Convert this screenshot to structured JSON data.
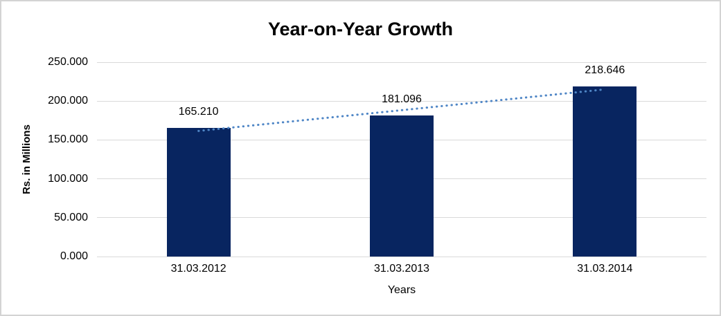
{
  "chart_data": {
    "type": "bar",
    "title": "Year-on-Year Growth",
    "xlabel": "Years",
    "ylabel": "Rs. in Millions",
    "categories": [
      "31.03.2012",
      "31.03.2013",
      "31.03.2014"
    ],
    "values": [
      165.21,
      181.096,
      218.646
    ],
    "value_labels": [
      "165.210",
      "181.096",
      "218.646"
    ],
    "ylim": [
      0,
      250
    ],
    "yticks": [
      {
        "value": 0,
        "label": "0.000"
      },
      {
        "value": 50,
        "label": "50.000"
      },
      {
        "value": 100,
        "label": "100.000"
      },
      {
        "value": 150,
        "label": "150.000"
      },
      {
        "value": 200,
        "label": "200.000"
      },
      {
        "value": 250,
        "label": "250.000"
      }
    ],
    "grid": true,
    "legend": false,
    "trendline": {
      "type": "linear",
      "style": "dotted"
    },
    "colors": {
      "bar": "#082560",
      "trendline": "#4f86c6",
      "gridline": "#d9d9d9",
      "text": "#000000",
      "background": "#ffffff",
      "frame_border": "#d3d3d3"
    }
  }
}
